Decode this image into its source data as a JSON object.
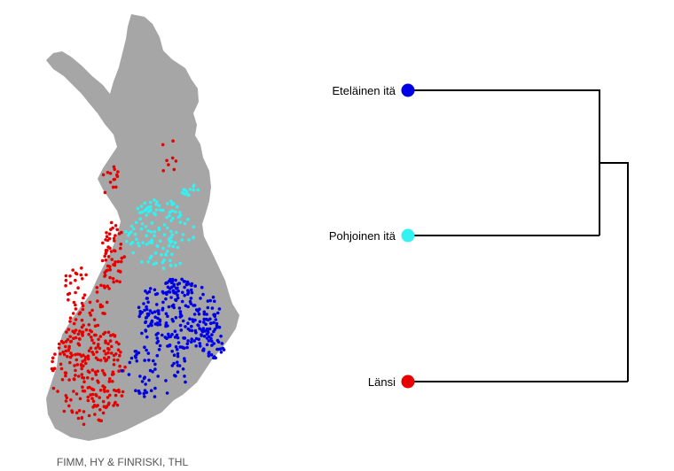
{
  "map": {
    "credit": "FIMM, HY & FINRISKI, THL",
    "land_color": "#a6a6a6"
  },
  "dendrogram": {
    "leaves": [
      {
        "label": "Eteläinen itä",
        "color": "#0000e6"
      },
      {
        "label": "Pohjoinen itä",
        "color": "#33f2f2"
      },
      {
        "label": "Länsi",
        "color": "#e60000"
      }
    ]
  },
  "legend_colors": {
    "south_east": "#0000e6",
    "north_east": "#33f2f2",
    "west": "#e60000"
  }
}
